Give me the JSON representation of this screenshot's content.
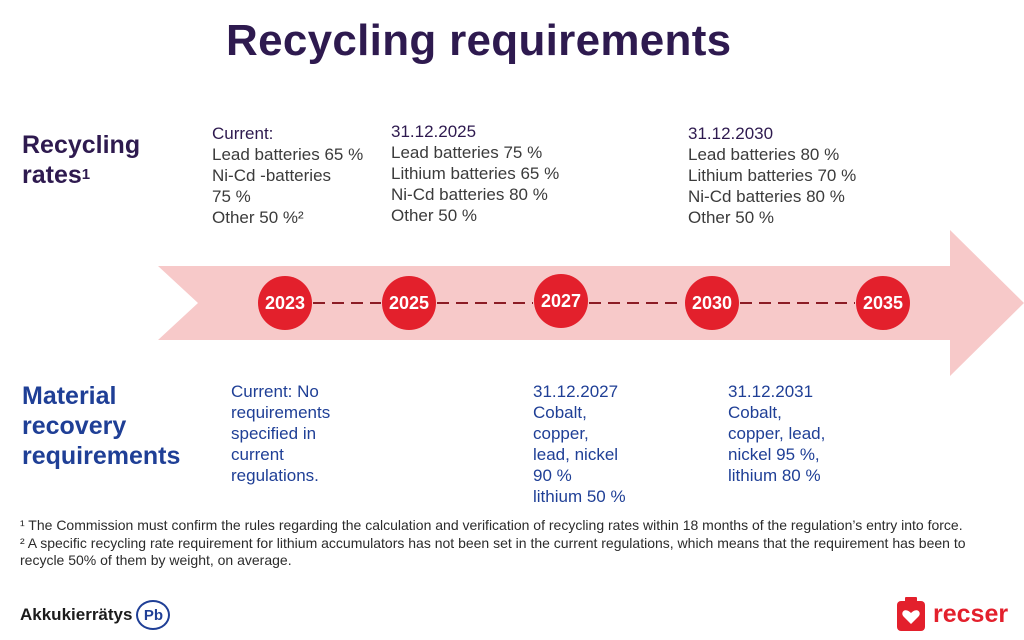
{
  "title": "Recycling requirements",
  "rows": {
    "rates_label": [
      "Recycling",
      "rates"
    ],
    "rates_sup": "1",
    "material_label": [
      "Material",
      "recovery",
      "requirements"
    ]
  },
  "timeline": {
    "years": [
      "2023",
      "2025",
      "2027",
      "2030",
      "2035"
    ]
  },
  "rates": {
    "current": {
      "heading": "Current:",
      "lines": [
        "Lead batteries 65 %",
        "Ni-Cd -batteries",
        "75 %",
        "Other 50 %²"
      ]
    },
    "y2025": {
      "heading": "31.12.2025",
      "lines": [
        "Lead batteries 75 %",
        "Lithium batteries 65 %",
        "Ni-Cd batteries 80 %",
        "Other 50 %"
      ]
    },
    "y2030": {
      "heading": "31.12.2030",
      "lines": [
        "Lead batteries 80 %",
        "Lithium batteries 70 %",
        "Ni-Cd batteries 80 %",
        "Other 50 %"
      ]
    }
  },
  "material": {
    "current": {
      "heading": "Current:",
      "heading_rest": " No",
      "lines": [
        "requirements",
        "specified in",
        "current",
        "regulations."
      ]
    },
    "y2027": {
      "heading": "31.12.2027",
      "lines": [
        "Cobalt,",
        "copper,",
        "lead, nickel",
        "90 %",
        "lithium 50 %"
      ]
    },
    "y2031": {
      "heading": "31.12.2031",
      "lines": [
        "Cobalt,",
        "copper, lead,",
        "nickel 95 %,",
        "lithium 80 %"
      ]
    }
  },
  "footnotes": {
    "note1": "¹ The Commission must confirm the rules regarding the calculation and verification of recycling rates within 18 months of the regulation’s entry into force.",
    "note2": "² A specific recycling rate requirement for lithium accumulators has not been set in the current regulations, which means that the requirement has been to recycle 50% of them by weight, on average."
  },
  "logos": {
    "left_wordmark": "Akkukierrätys",
    "left_badge": "Pb",
    "right_wordmark": "recser"
  },
  "colors": {
    "title": "#2e1a4f",
    "material_text": "#1f3f96",
    "arrow_fill": "#f7c9c9",
    "milestone": "#e3202c",
    "connector": "#8c1c25"
  }
}
